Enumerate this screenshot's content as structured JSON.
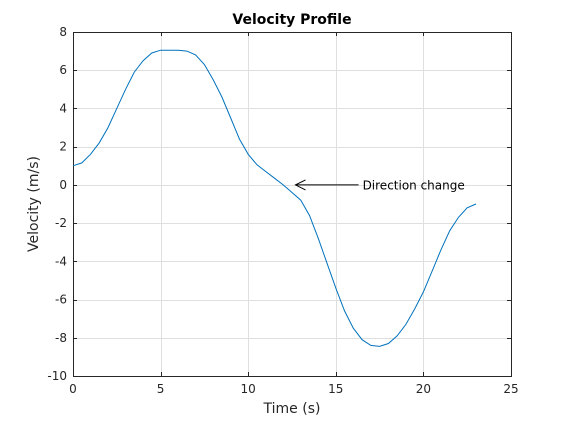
{
  "chart_data": {
    "type": "line",
    "title": "Velocity Profile",
    "xlabel": "Time (s)",
    "ylabel": "Velocity (m/s)",
    "xlim": [
      0,
      25
    ],
    "ylim": [
      -10,
      8
    ],
    "xticks": [
      0,
      5,
      10,
      15,
      20,
      25
    ],
    "yticks": [
      -10,
      -8,
      -6,
      -4,
      -2,
      0,
      2,
      4,
      6,
      8
    ],
    "grid": true,
    "series": [
      {
        "color": "#0072BD",
        "x": [
          0,
          0.5,
          1,
          1.5,
          2,
          2.5,
          3,
          3.5,
          4,
          4.5,
          5,
          5.5,
          6,
          6.5,
          7,
          7.5,
          8,
          8.5,
          9,
          9.5,
          10,
          10.5,
          11,
          11.5,
          12,
          12.5,
          13,
          13.5,
          14,
          14.5,
          15,
          15.5,
          16,
          16.5,
          17,
          17.5,
          18,
          18.5,
          19,
          19.5,
          20,
          20.5,
          21,
          21.5,
          22,
          22.5,
          23
        ],
        "y": [
          1.0,
          1.15,
          1.6,
          2.2,
          3.0,
          4.0,
          5.0,
          5.9,
          6.5,
          6.9,
          7.05,
          7.05,
          7.05,
          7.0,
          6.8,
          6.3,
          5.5,
          4.6,
          3.5,
          2.4,
          1.6,
          1.05,
          0.7,
          0.35,
          0.0,
          -0.4,
          -0.8,
          -1.6,
          -2.8,
          -4.1,
          -5.4,
          -6.6,
          -7.5,
          -8.1,
          -8.4,
          -8.45,
          -8.3,
          -7.9,
          -7.3,
          -6.5,
          -5.6,
          -4.5,
          -3.4,
          -2.4,
          -1.7,
          -1.2,
          -1.0
        ]
      }
    ],
    "annotations": [
      {
        "text": "Direction change",
        "arrow_from": [
          16.3,
          0
        ],
        "arrow_to": [
          12.7,
          0
        ]
      }
    ]
  }
}
